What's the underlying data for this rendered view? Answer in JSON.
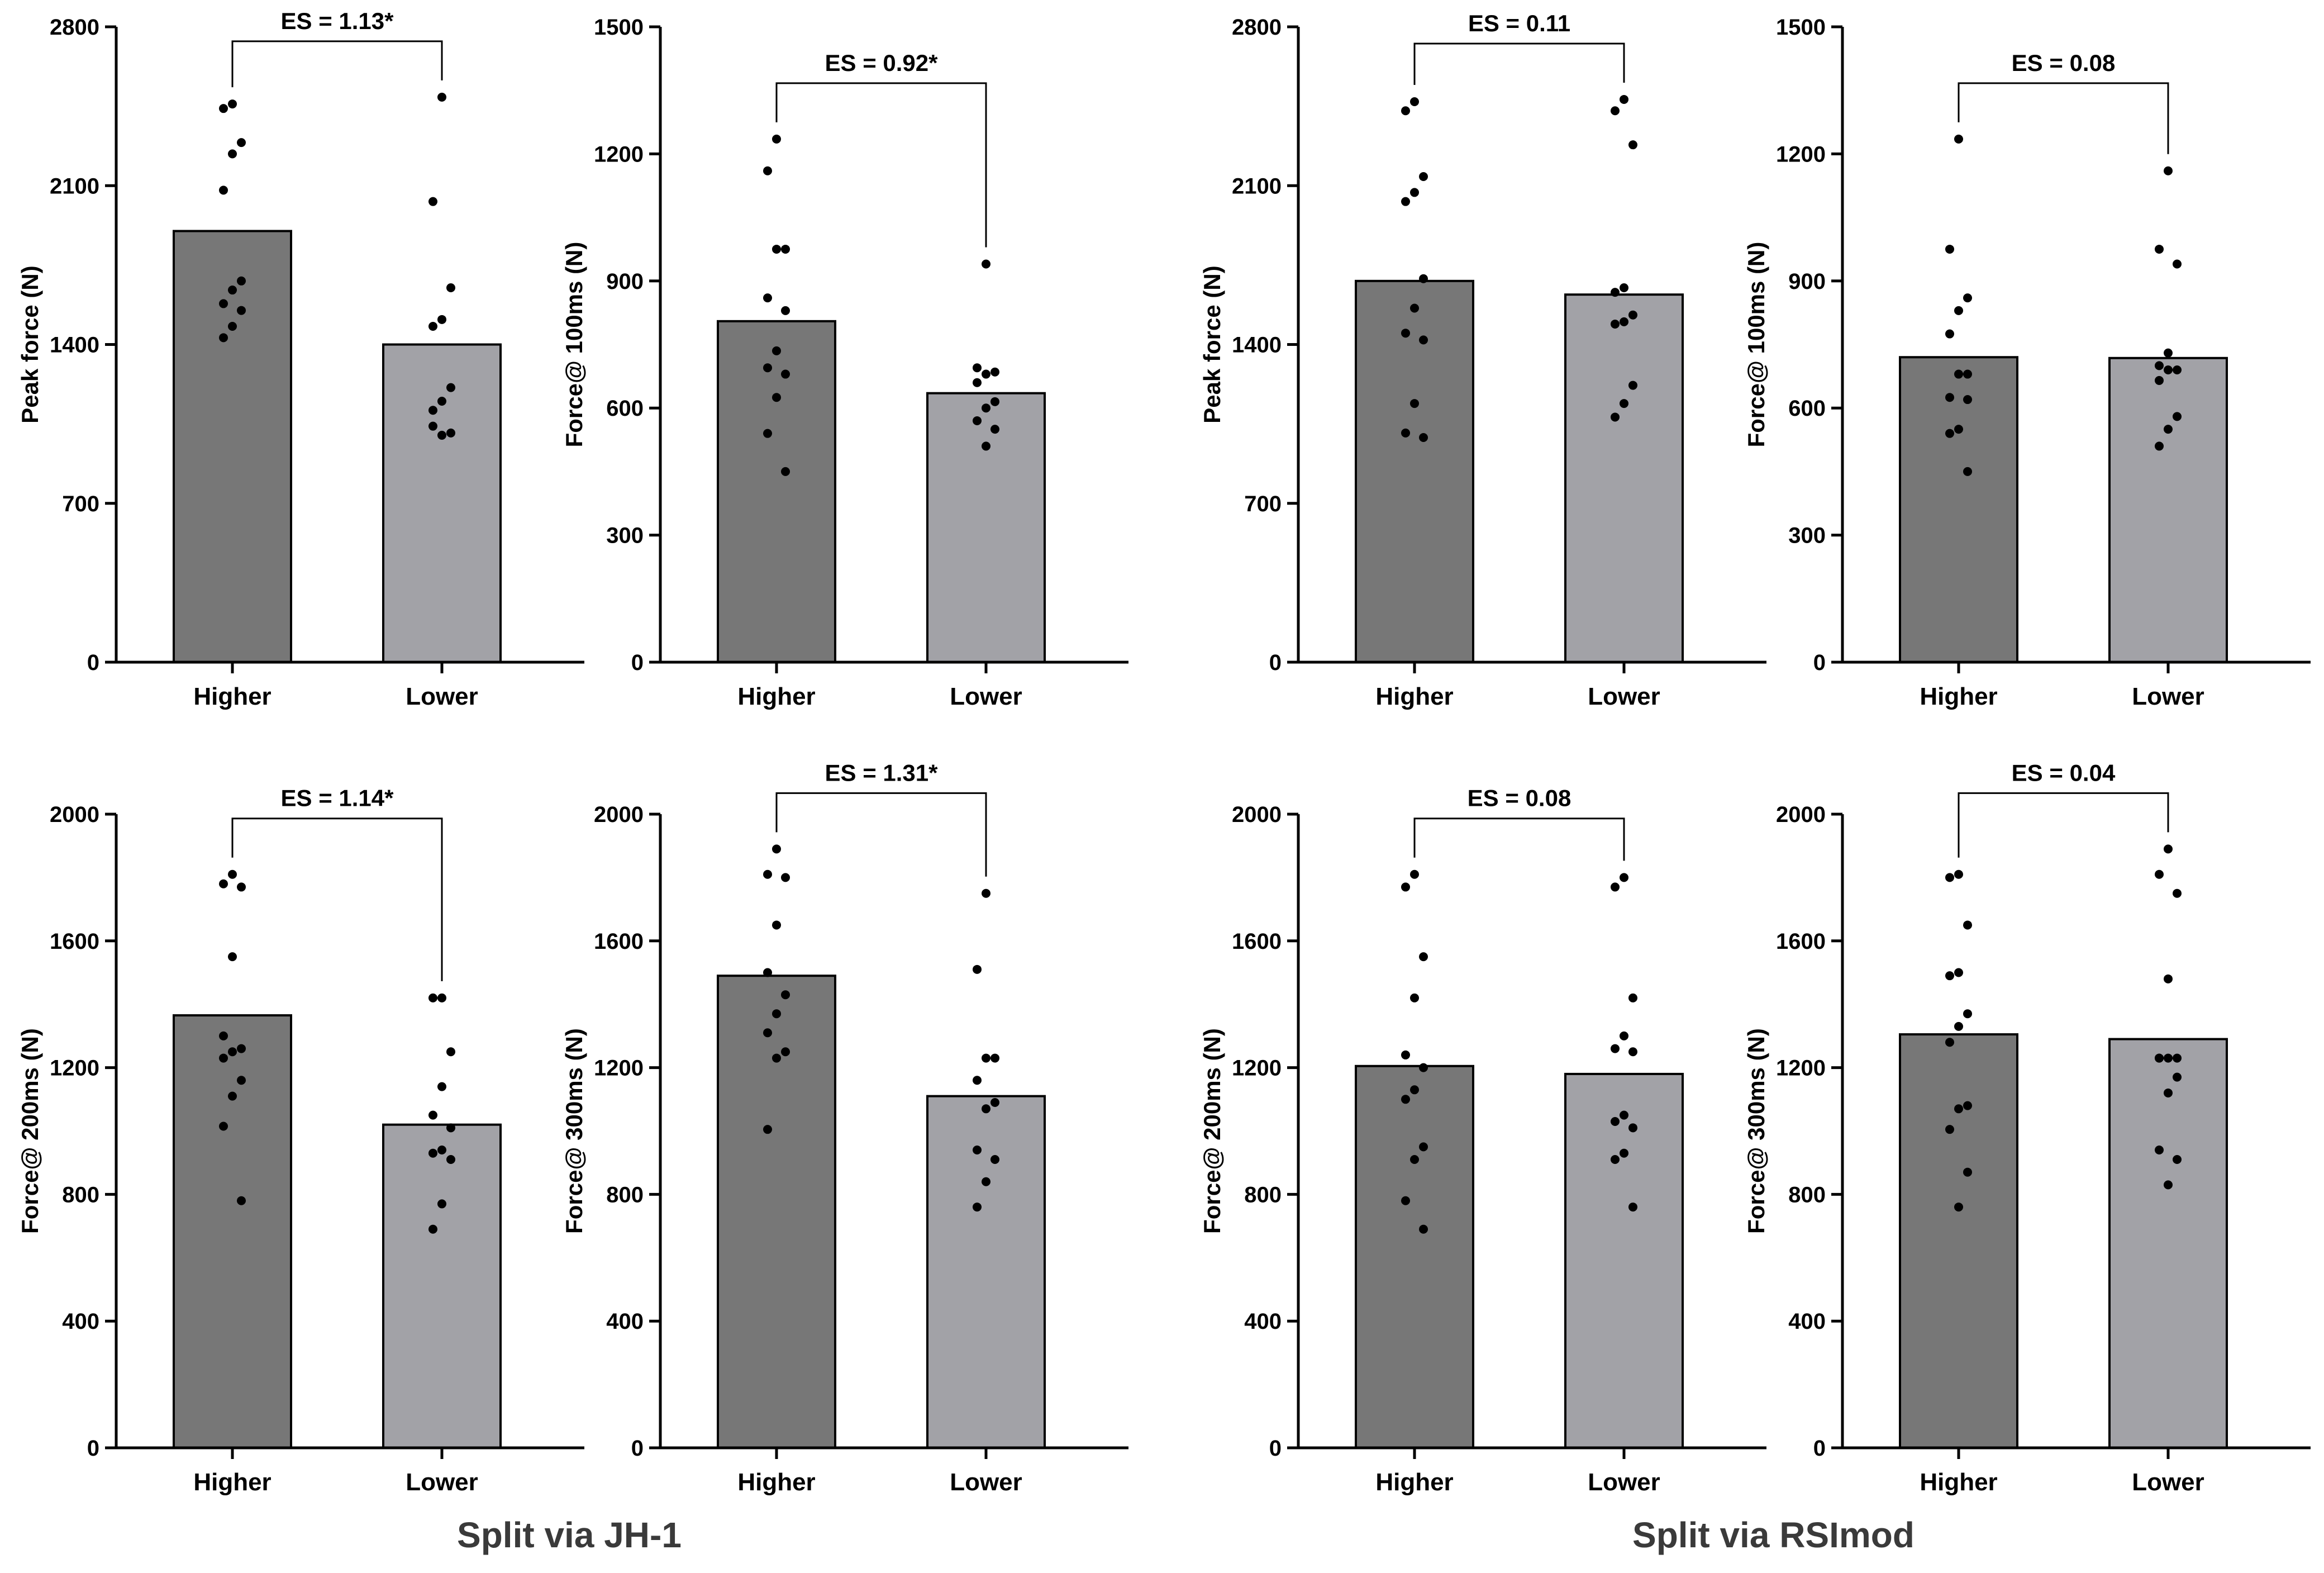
{
  "captions": {
    "left": "Split via JH-1",
    "right": "Split via RSImod"
  },
  "colors": {
    "higher_bar": "#777777",
    "lower_bar": "#a2a2a7",
    "points": "#000000",
    "axis": "#000000"
  },
  "chart_data": [
    {
      "type": "bar",
      "panel": "JH-1 peak force",
      "ylabel": "Peak force (N)",
      "ylim": [
        0,
        2800
      ],
      "yticks": [
        "0",
        "700",
        "1400",
        "2100",
        "2800"
      ],
      "categories": [
        "Higher",
        "Lower"
      ],
      "values": [
        1900,
        1400
      ],
      "annotation": "ES = 1.13*",
      "points": [
        [
          2460,
          2440,
          2290,
          2240,
          2080,
          1680,
          1640,
          1580,
          1550,
          1480,
          1430
        ],
        [
          2490,
          2030,
          1650,
          1510,
          1480,
          1210,
          1150,
          1110,
          1010,
          1000,
          1040
        ]
      ]
    },
    {
      "type": "bar",
      "panel": "JH-1 force at 100ms",
      "ylabel": "Force@ 100ms (N)",
      "ylim": [
        0,
        1500
      ],
      "yticks": [
        "0",
        "300",
        "600",
        "900",
        "1200",
        "1500"
      ],
      "categories": [
        "Higher",
        "Lower"
      ],
      "values": [
        805,
        635
      ],
      "annotation": "ES = 0.92*",
      "points": [
        [
          1235,
          1160,
          975,
          975,
          860,
          830,
          735,
          695,
          680,
          625,
          540,
          450
        ],
        [
          940,
          695,
          685,
          680,
          660,
          615,
          600,
          570,
          550,
          510
        ]
      ]
    },
    {
      "type": "bar",
      "panel": "RSImod peak force",
      "ylabel": "Peak force (N)",
      "ylim": [
        0,
        2800
      ],
      "yticks": [
        "0",
        "700",
        "1400",
        "2100",
        "2800"
      ],
      "categories": [
        "Higher",
        "Lower"
      ],
      "values": [
        1680,
        1620
      ],
      "annotation": "ES = 0.11",
      "points": [
        [
          2470,
          2430,
          2140,
          2070,
          2030,
          1690,
          1560,
          1450,
          1420,
          1140,
          1010,
          990
        ],
        [
          2480,
          2430,
          2280,
          1650,
          1630,
          1530,
          1500,
          1490,
          1220,
          1140,
          1080
        ]
      ]
    },
    {
      "type": "bar",
      "panel": "RSImod force at 100ms",
      "ylabel": "Force@ 100ms (N)",
      "ylim": [
        0,
        1500
      ],
      "yticks": [
        "0",
        "300",
        "600",
        "900",
        "1200",
        "1500"
      ],
      "categories": [
        "Higher",
        "Lower"
      ],
      "values": [
        720,
        718
      ],
      "annotation": "ES = 0.08",
      "points": [
        [
          1235,
          975,
          860,
          830,
          775,
          680,
          680,
          625,
          620,
          550,
          540,
          450
        ],
        [
          1160,
          975,
          940,
          730,
          700,
          690,
          690,
          665,
          580,
          550,
          510
        ]
      ]
    },
    {
      "type": "bar",
      "panel": "JH-1 force at 200ms",
      "ylabel": "Force@ 200ms (N)",
      "ylim": [
        0,
        2000
      ],
      "yticks": [
        "0",
        "400",
        "800",
        "1200",
        "1600",
        "2000"
      ],
      "categories": [
        "Higher",
        "Lower"
      ],
      "values": [
        1365,
        1020
      ],
      "annotation": "ES = 1.14*",
      "points": [
        [
          1810,
          1780,
          1770,
          1550,
          1300,
          1260,
          1250,
          1230,
          1160,
          1110,
          1015,
          780
        ],
        [
          1420,
          1420,
          1250,
          1140,
          1050,
          1010,
          940,
          930,
          910,
          770,
          690
        ]
      ]
    },
    {
      "type": "bar",
      "panel": "JH-1 force at 300ms",
      "ylabel": "Force@ 300ms (N)",
      "ylim": [
        0,
        2000
      ],
      "yticks": [
        "0",
        "400",
        "800",
        "1200",
        "1600",
        "2000"
      ],
      "categories": [
        "Higher",
        "Lower"
      ],
      "values": [
        1490,
        1110
      ],
      "annotation": "ES = 1.31*",
      "points": [
        [
          1890,
          1810,
          1800,
          1650,
          1500,
          1430,
          1370,
          1310,
          1250,
          1230,
          1005
        ],
        [
          1750,
          1510,
          1230,
          1230,
          1160,
          1090,
          1070,
          940,
          910,
          840,
          760
        ]
      ]
    },
    {
      "type": "bar",
      "panel": "RSImod force at 200ms",
      "ylabel": "Force@ 200ms (N)",
      "ylim": [
        0,
        2000
      ],
      "yticks": [
        "0",
        "400",
        "800",
        "1200",
        "1600",
        "2000"
      ],
      "categories": [
        "Higher",
        "Lower"
      ],
      "values": [
        1205,
        1180
      ],
      "annotation": "ES = 0.08",
      "points": [
        [
          1810,
          1770,
          1550,
          1420,
          1240,
          1200,
          1130,
          1100,
          950,
          910,
          780,
          690
        ],
        [
          1800,
          1770,
          1420,
          1300,
          1260,
          1250,
          1050,
          1030,
          1010,
          930,
          910,
          760
        ]
      ]
    },
    {
      "type": "bar",
      "panel": "RSImod force at 300ms",
      "ylabel": "Force@ 300ms (N)",
      "ylim": [
        0,
        2000
      ],
      "yticks": [
        "0",
        "400",
        "800",
        "1200",
        "1600",
        "2000"
      ],
      "categories": [
        "Higher",
        "Lower"
      ],
      "values": [
        1305,
        1290
      ],
      "annotation": "ES = 0.04",
      "points": [
        [
          1810,
          1800,
          1650,
          1500,
          1490,
          1370,
          1330,
          1280,
          1080,
          1070,
          1005,
          870,
          760
        ],
        [
          1890,
          1810,
          1750,
          1480,
          1230,
          1230,
          1230,
          1230,
          1170,
          1120,
          940,
          910,
          830
        ]
      ]
    }
  ]
}
